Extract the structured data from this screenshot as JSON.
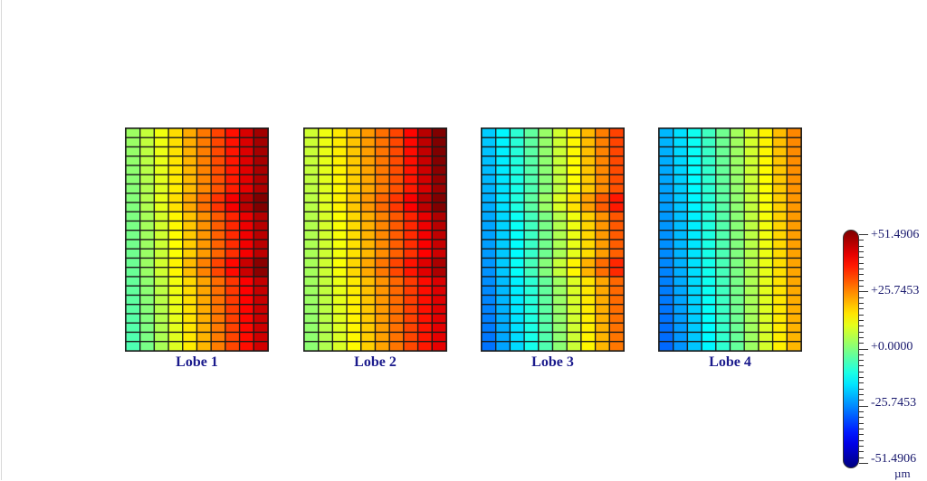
{
  "chart_data": {
    "type": "heatmap",
    "grid": {
      "rows": 24,
      "cols": 10
    },
    "panels": [
      {
        "label": "Lobe 1",
        "value_range": [
          3,
          48
        ],
        "trend": "increasing-left-to-right",
        "hotspots": [
          "band-near-row-8",
          "band-near-row-15"
        ]
      },
      {
        "label": "Lobe 2",
        "value_range": [
          8,
          45
        ],
        "trend": "increasing-left-to-right",
        "hotspots": [
          "top-right-corner",
          "band-near-row-8",
          "band-near-row-15"
        ]
      },
      {
        "label": "Lobe 3",
        "value_range": [
          -18,
          32
        ],
        "trend": "increasing-left-to-right",
        "hotspots": [
          "band-near-row-8",
          "band-near-row-15"
        ]
      },
      {
        "label": "Lobe 4",
        "value_range": [
          -20,
          25
        ],
        "trend": "increasing-left-to-right",
        "hotspots": []
      }
    ],
    "colorbar": {
      "min": -51.4906,
      "max": 51.4906,
      "colormap": "jet",
      "labels": [
        "+51.4906",
        "+25.7453",
        "+0.0000",
        "-25.7453",
        "-51.4906"
      ],
      "unit": "µm"
    }
  }
}
